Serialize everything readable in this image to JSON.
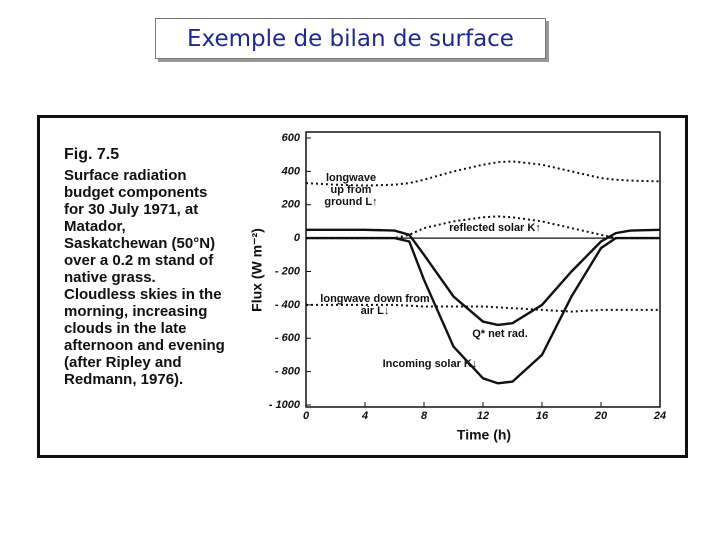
{
  "slide_title": "Exemple de bilan de surface",
  "caption": {
    "figure": "Fig. 7.5",
    "text": "Surface radiation budget components for 30 July 1971, at Matador, Saskatchewan (50°N) over a 0.2 m stand of native grass. Cloudless skies in the morning, increasing clouds in the late afternoon and evening (after Ripley and Redmann, 1976)."
  },
  "chart_data": {
    "type": "line",
    "xlabel": "Time (h)",
    "ylabel": "Flux (W m⁻²)",
    "x": [
      0,
      2,
      4,
      6,
      7,
      8,
      10,
      12,
      13,
      14,
      16,
      18,
      20,
      21,
      22,
      24
    ],
    "xlim": [
      0,
      24
    ],
    "xticks": [
      0,
      4,
      8,
      12,
      16,
      20,
      24
    ],
    "ylim": [
      -1000,
      600
    ],
    "yticks": [
      600,
      400,
      200,
      0,
      {
        "value": -200,
        "label": "- 200"
      },
      {
        "value": -400,
        "label": "- 400"
      },
      {
        "value": -600,
        "label": "- 600"
      },
      {
        "value": -800,
        "label": "- 800"
      },
      {
        "value": -1000,
        "label": "- 1000"
      }
    ],
    "zero_line": true,
    "series": [
      {
        "name": "longwave up from ground L↑",
        "color": "#111111",
        "style": "dotted",
        "values": [
          330,
          320,
          315,
          320,
          330,
          350,
          400,
          440,
          455,
          460,
          440,
          400,
          360,
          350,
          345,
          340
        ]
      },
      {
        "name": "reflected solar K↑",
        "color": "#111111",
        "style": "dotted",
        "values": [
          0,
          0,
          0,
          0,
          20,
          60,
          100,
          125,
          130,
          125,
          100,
          60,
          20,
          0,
          0,
          0
        ]
      },
      {
        "name": "longwave down from air L↓",
        "color": "#111111",
        "style": "dotted",
        "values": [
          -400,
          -400,
          -400,
          -400,
          -405,
          -410,
          -410,
          -410,
          -415,
          -420,
          -430,
          -440,
          -430,
          -430,
          -430,
          -430
        ]
      },
      {
        "name": "Q* net rad.",
        "color": "#111111",
        "style": "solid",
        "values": [
          50,
          50,
          50,
          45,
          20,
          -100,
          -350,
          -500,
          -520,
          -510,
          -400,
          -200,
          -20,
          30,
          45,
          50
        ]
      },
      {
        "name": "Incoming solar K↓",
        "color": "#111111",
        "style": "solid",
        "values": [
          0,
          0,
          0,
          0,
          -20,
          -250,
          -650,
          -840,
          -870,
          -860,
          -700,
          -350,
          -60,
          0,
          0,
          0
        ]
      }
    ]
  }
}
